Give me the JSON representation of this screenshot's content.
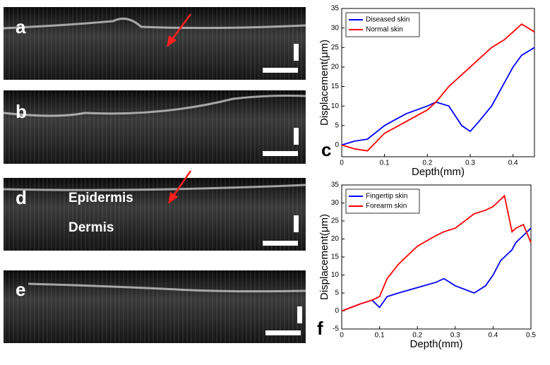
{
  "panels": {
    "labels": [
      "a",
      "b",
      "d",
      "e"
    ],
    "epidermis": "Epidermis",
    "dermis": "Dermis"
  },
  "chart_data": [
    {
      "type": "line",
      "panel": "c",
      "xlabel": "Depth(mm)",
      "ylabel": "Displacement(μm)",
      "xlim": [
        0,
        0.45
      ],
      "xticks": [
        0,
        0.1,
        0.2,
        0.3,
        0.4
      ],
      "ylim": [
        -3,
        35
      ],
      "yticks": [
        0,
        5,
        10,
        15,
        20,
        25,
        30,
        35
      ],
      "legend": "upper left",
      "x": [
        0,
        0.03,
        0.06,
        0.1,
        0.15,
        0.2,
        0.22,
        0.25,
        0.28,
        0.3,
        0.32,
        0.35,
        0.38,
        0.4,
        0.42,
        0.45
      ],
      "series": [
        {
          "name": "Diseased skin",
          "color": "#0000ff",
          "values": [
            0,
            1,
            1.5,
            5,
            8,
            10,
            11,
            10,
            5,
            3.5,
            6,
            10,
            16,
            20,
            23,
            25
          ]
        },
        {
          "name": "Normal skin",
          "color": "#ff0000",
          "values": [
            0,
            -1,
            -1.5,
            3,
            6,
            9,
            11,
            15,
            18,
            20,
            22,
            25,
            27,
            29,
            31,
            29
          ]
        }
      ]
    },
    {
      "type": "line",
      "panel": "f",
      "xlabel": "Depth(mm)",
      "ylabel": "Displacement(μm)",
      "xlim": [
        0,
        0.5
      ],
      "xticks": [
        0,
        0.1,
        0.2,
        0.3,
        0.4,
        0.5
      ],
      "ylim": [
        -5,
        35
      ],
      "yticks": [
        -5,
        0,
        5,
        10,
        15,
        20,
        25,
        30,
        35
      ],
      "legend": "upper left",
      "x": [
        0,
        0.05,
        0.08,
        0.1,
        0.12,
        0.15,
        0.2,
        0.25,
        0.27,
        0.3,
        0.35,
        0.38,
        0.4,
        0.42,
        0.43,
        0.45,
        0.46,
        0.48,
        0.5
      ],
      "series": [
        {
          "name": "Fingertip skin",
          "color": "#0000ff",
          "values": [
            0,
            2,
            3,
            1,
            4,
            5,
            6.5,
            8,
            9,
            7,
            5,
            7,
            10,
            14,
            15,
            17,
            19,
            21,
            23
          ]
        },
        {
          "name": "Forearm skin",
          "color": "#ff0000",
          "values": [
            0,
            2,
            3,
            4,
            9,
            13,
            18,
            21,
            22,
            23,
            27,
            28,
            29,
            31,
            32,
            22,
            23,
            24,
            19
          ]
        }
      ]
    }
  ]
}
